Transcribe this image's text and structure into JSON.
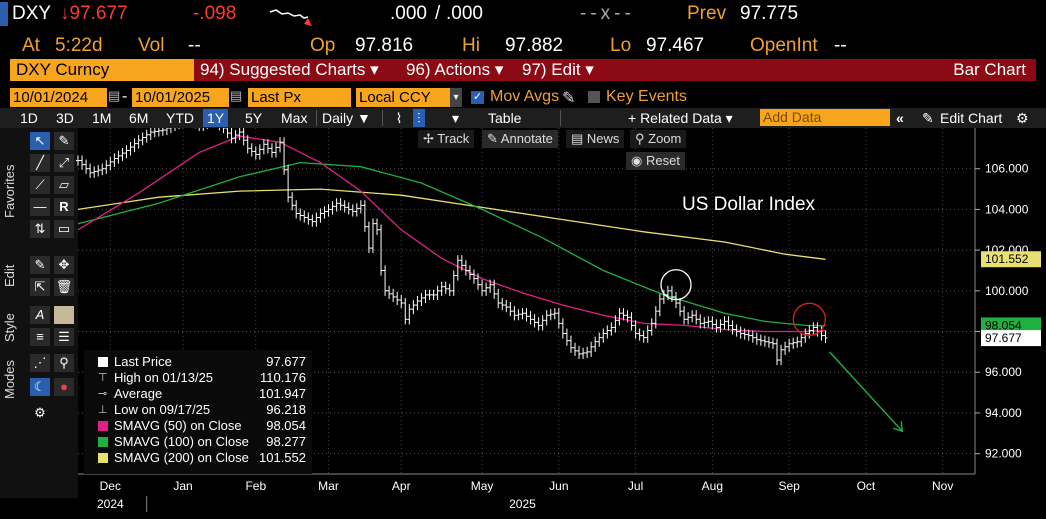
{
  "quote": {
    "ticker": "DXY",
    "last": "↓97.677",
    "change": "-.098",
    "bid": ".000",
    "ask": ".000",
    "size": "--x--",
    "prev_label": "Prev",
    "prev_value": "97.775",
    "at_label": "At",
    "at_value": "5:22d",
    "vol_label": "Vol",
    "vol_value": "--",
    "op_label": "Op",
    "op_value": "97.816",
    "hi_label": "Hi",
    "hi_value": "97.882",
    "lo_label": "Lo",
    "lo_value": "97.467",
    "openint_label": "OpenInt",
    "openint_value": "--"
  },
  "function_bar": {
    "security": "DXY Curncy",
    "suggested": "94) Suggested Charts ▾",
    "actions": "96) Actions ▾",
    "edit": "97) Edit ▾",
    "chart_type": "Bar Chart"
  },
  "controls": {
    "start_date": "10/01/2024",
    "end_date": "10/01/2025",
    "field": "Last Px",
    "currency": "Local CCY",
    "mov_avgs": "Mov Avgs",
    "key_events": "Key Events",
    "periods": [
      "1D",
      "3D",
      "1M",
      "6M",
      "YTD",
      "1Y",
      "5Y",
      "Max"
    ],
    "selected_period": "1Y",
    "frequency": "Daily ▼",
    "table": "Table",
    "related_data": "+ Related Data ▾",
    "add_data_placeholder": "Add Data",
    "edit_chart": "Edit Chart"
  },
  "side_labels": {
    "favorites": "Favorites",
    "edit": "Edit",
    "style": "Style",
    "modes": "Modes"
  },
  "overlay_tools": {
    "track": "Track",
    "annotate": "Annotate",
    "news": "News",
    "zoom": "Zoom",
    "reset": "Reset"
  },
  "colors": {
    "price": "#ffffff",
    "sma50": "#e0208a",
    "sma100": "#20b040",
    "sma200": "#e8e070",
    "amber": "#f7a51c",
    "red_bar": "#8b0a14",
    "arrow": "#20b040",
    "circle_white": "#ffffff",
    "circle_red": "#e02020"
  },
  "chart_data": {
    "type": "line",
    "title": "US Dollar Index",
    "ylim": [
      91,
      108
    ],
    "y_ticks": [
      "106.000",
      "104.000",
      "102.000",
      "100.000",
      "98.000",
      "96.000",
      "94.000",
      "92.000"
    ],
    "x_months": [
      "Dec",
      "Jan",
      "Feb",
      "Mar",
      "Apr",
      "May",
      "Jun",
      "Jul",
      "Aug",
      "Sep",
      "Oct",
      "Nov"
    ],
    "x_year_labels": [
      "2024",
      "2025"
    ],
    "price_label": "97.677",
    "sma200_label": "101.552",
    "sma50_label": "98.054",
    "price": [
      [
        0,
        106.4
      ],
      [
        3,
        105.8
      ],
      [
        6,
        106.0
      ],
      [
        9,
        106.5
      ],
      [
        12,
        106.9
      ],
      [
        15,
        107.4
      ],
      [
        18,
        107.8
      ],
      [
        21,
        107.9
      ],
      [
        24,
        108.2
      ],
      [
        27,
        108.5
      ],
      [
        30,
        108.1
      ],
      [
        33,
        108.4
      ],
      [
        36,
        108.0
      ],
      [
        38,
        107.5
      ],
      [
        40,
        107.8
      ],
      [
        42,
        107.0
      ],
      [
        44,
        106.7
      ],
      [
        46,
        107.2
      ],
      [
        48,
        106.8
      ],
      [
        50,
        107.3
      ],
      [
        52,
        104.6
      ],
      [
        54,
        103.8
      ],
      [
        56,
        103.6
      ],
      [
        58,
        103.4
      ],
      [
        60,
        103.8
      ],
      [
        62,
        104.0
      ],
      [
        64,
        104.3
      ],
      [
        66,
        104.1
      ],
      [
        68,
        103.9
      ],
      [
        70,
        104.2
      ],
      [
        72,
        102.1
      ],
      [
        73,
        103.3
      ],
      [
        74,
        103.0
      ],
      [
        75,
        101.0
      ],
      [
        76,
        100.0
      ],
      [
        78,
        99.7
      ],
      [
        80,
        99.4
      ],
      [
        81,
        98.6
      ],
      [
        82,
        99.1
      ],
      [
        84,
        99.5
      ],
      [
        86,
        99.8
      ],
      [
        88,
        99.8
      ],
      [
        90,
        100.2
      ],
      [
        92,
        100.0
      ],
      [
        94,
        101.5
      ],
      [
        96,
        101.0
      ],
      [
        98,
        100.6
      ],
      [
        100,
        100.0
      ],
      [
        102,
        100.3
      ],
      [
        104,
        99.4
      ],
      [
        106,
        99.2
      ],
      [
        108,
        98.8
      ],
      [
        110,
        98.9
      ],
      [
        112,
        98.6
      ],
      [
        114,
        98.3
      ],
      [
        116,
        98.8
      ],
      [
        118,
        98.9
      ],
      [
        120,
        97.9
      ],
      [
        122,
        97.2
      ],
      [
        124,
        96.9
      ],
      [
        126,
        97.0
      ],
      [
        128,
        97.5
      ],
      [
        130,
        97.9
      ],
      [
        132,
        98.2
      ],
      [
        134,
        98.9
      ],
      [
        136,
        98.7
      ],
      [
        138,
        97.9
      ],
      [
        140,
        97.7
      ],
      [
        142,
        98.4
      ],
      [
        144,
        99.6
      ],
      [
        146,
        100.0
      ],
      [
        148,
        99.4
      ],
      [
        150,
        98.6
      ],
      [
        152,
        98.8
      ],
      [
        154,
        98.4
      ],
      [
        156,
        98.5
      ],
      [
        158,
        98.2
      ],
      [
        160,
        98.5
      ],
      [
        162,
        98.1
      ],
      [
        164,
        97.9
      ],
      [
        166,
        97.8
      ],
      [
        168,
        97.6
      ],
      [
        170,
        97.5
      ],
      [
        172,
        97.4
      ],
      [
        173,
        96.6
      ],
      [
        174,
        97.1
      ],
      [
        176,
        97.4
      ],
      [
        178,
        97.5
      ],
      [
        180,
        97.9
      ],
      [
        182,
        98.2
      ],
      [
        184,
        97.8
      ],
      [
        185,
        97.68
      ]
    ],
    "sma50": [
      [
        0,
        103.0
      ],
      [
        15,
        104.8
      ],
      [
        30,
        106.8
      ],
      [
        40,
        107.6
      ],
      [
        50,
        107.3
      ],
      [
        60,
        106.3
      ],
      [
        70,
        104.9
      ],
      [
        80,
        103.0
      ],
      [
        90,
        101.6
      ],
      [
        100,
        100.6
      ],
      [
        110,
        99.9
      ],
      [
        120,
        99.3
      ],
      [
        130,
        98.8
      ],
      [
        140,
        98.4
      ],
      [
        150,
        98.3
      ],
      [
        160,
        98.1
      ],
      [
        170,
        98.0
      ],
      [
        180,
        98.0
      ],
      [
        185,
        98.05
      ]
    ],
    "sma100": [
      [
        0,
        103.3
      ],
      [
        20,
        104.3
      ],
      [
        40,
        105.6
      ],
      [
        55,
        106.3
      ],
      [
        70,
        106.1
      ],
      [
        85,
        105.3
      ],
      [
        100,
        104.0
      ],
      [
        115,
        102.6
      ],
      [
        130,
        101.0
      ],
      [
        145,
        99.8
      ],
      [
        160,
        98.9
      ],
      [
        170,
        98.5
      ],
      [
        180,
        98.3
      ],
      [
        185,
        98.28
      ]
    ],
    "sma200": [
      [
        0,
        104.0
      ],
      [
        20,
        104.6
      ],
      [
        40,
        104.9
      ],
      [
        60,
        105.0
      ],
      [
        80,
        104.7
      ],
      [
        100,
        104.1
      ],
      [
        120,
        103.5
      ],
      [
        140,
        102.9
      ],
      [
        160,
        102.4
      ],
      [
        175,
        101.8
      ],
      [
        185,
        101.55
      ]
    ],
    "month_ticks": [
      [
        8,
        "Dec"
      ],
      [
        26,
        "Jan"
      ],
      [
        44,
        "Feb"
      ],
      [
        62,
        "Mar"
      ],
      [
        80,
        "Apr"
      ],
      [
        100,
        "May"
      ],
      [
        119,
        "Jun"
      ],
      [
        138,
        "Jul"
      ],
      [
        157,
        "Aug"
      ],
      [
        176,
        "Sep"
      ],
      [
        195,
        "Oct"
      ],
      [
        214,
        "Nov"
      ]
    ],
    "annotations": {
      "white_circle": [
        148,
        100.3
      ],
      "red_circle": [
        181,
        98.6
      ],
      "arrow": [
        [
          186,
          97.0
        ],
        [
          204,
          93.1
        ]
      ]
    },
    "legend": [
      {
        "swatch": "#ffffff",
        "name": "Last Price",
        "value": "97.677"
      },
      {
        "swatch": "",
        "name": "High on 01/13/25",
        "value": "110.176"
      },
      {
        "swatch": "",
        "name": "Average",
        "value": "101.947"
      },
      {
        "swatch": "",
        "name": "Low on 09/17/25",
        "value": "96.218"
      },
      {
        "swatch": "#e0208a",
        "name": "SMAVG (50)  on Close",
        "value": "98.054"
      },
      {
        "swatch": "#20b040",
        "name": "SMAVG (100)  on Close",
        "value": "98.277"
      },
      {
        "swatch": "#e8e070",
        "name": "SMAVG (200)  on Close",
        "value": "101.552"
      }
    ]
  }
}
